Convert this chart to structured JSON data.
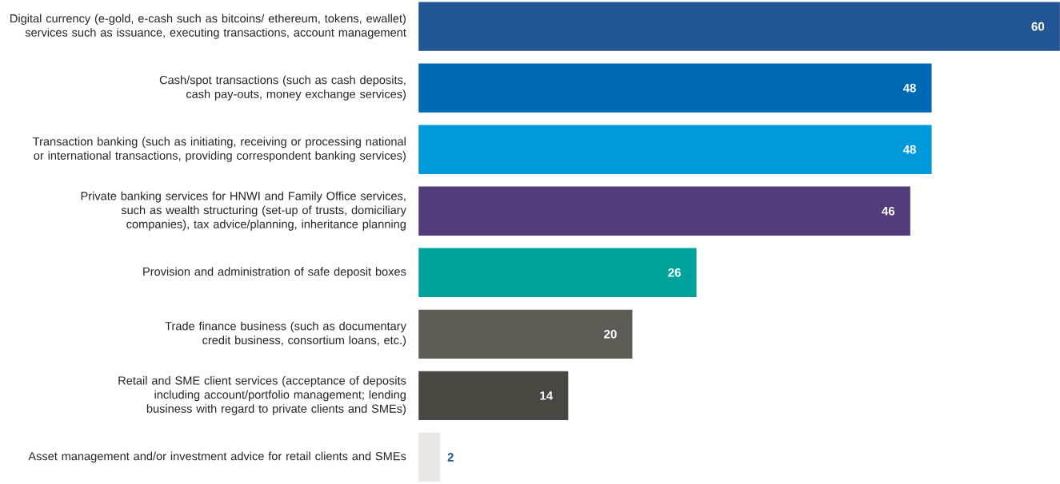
{
  "chart_data": {
    "type": "bar",
    "orientation": "horizontal",
    "data_labels": true,
    "categories": [
      "Digital currency (e-gold, e-cash such as bitcoins/ ethereum, tokens, ewallet) services such as issuance, executing transactions, account management",
      "Cash/spot transactions (such as cash deposits, cash pay-outs, money exchange services)",
      "Transaction banking (such as initiating, receiving or processing national or international transactions, providing correspondent banking services)",
      "Private banking services for HNWI and Family Office services, such as wealth structuring (set-up of trusts, domiciliary companies), tax advice/planning, inheritance planning",
      "Provision and administration of safe deposit boxes",
      "Trade finance business (such as documentary credit business, consortium loans, etc.)",
      "Retail and SME client services (acceptance of deposits including account/portfolio management; lending business with regard to private clients and SMEs)",
      "Asset management and/or investment advice for retail clients and SMEs"
    ],
    "values": [
      60,
      48,
      48,
      46,
      26,
      20,
      14,
      2
    ],
    "colors": [
      "#225594",
      "#0069b4",
      "#0098d8",
      "#523c7c",
      "#00a39c",
      "#5f5b56",
      "#4a4641",
      "#e8e7e4"
    ],
    "xlim": [
      0,
      60
    ]
  }
}
